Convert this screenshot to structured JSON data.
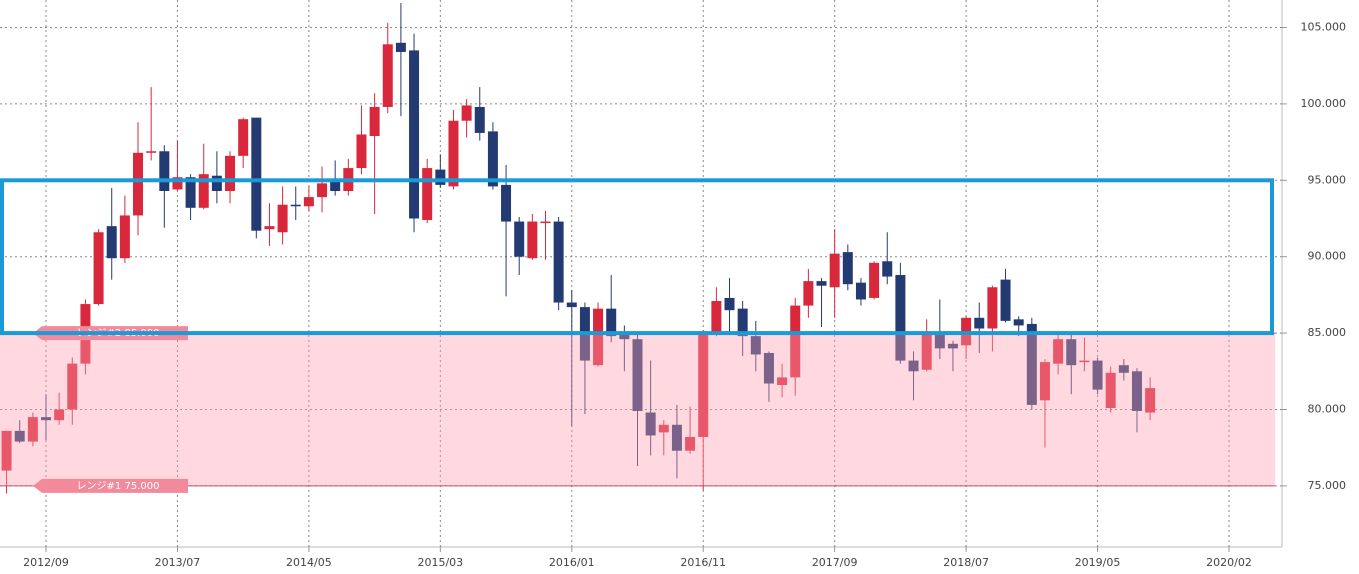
{
  "chart_data": {
    "type": "candlestick",
    "categories": [
      null,
      null,
      null,
      "2012/09",
      null,
      null,
      null,
      null,
      null,
      null,
      null,
      null,
      null,
      "2013/07",
      null,
      null,
      null,
      null,
      null,
      null,
      null,
      null,
      null,
      "2014/05",
      null,
      null,
      null,
      null,
      null,
      null,
      null,
      null,
      null,
      "2015/03",
      null,
      null,
      null,
      null,
      null,
      null,
      null,
      null,
      null,
      "2016/01",
      null,
      null,
      null,
      null,
      null,
      null,
      null,
      null,
      null,
      "2016/11",
      null,
      null,
      null,
      null,
      null,
      null,
      null,
      null,
      null,
      "2017/09",
      null,
      null,
      null,
      null,
      null,
      null,
      null,
      null,
      null,
      "2018/07",
      null,
      null,
      null,
      null,
      null,
      null,
      null,
      null,
      null,
      "2019/05",
      null,
      null,
      null,
      null,
      null,
      null,
      null,
      null,
      null,
      "2020/02",
      null,
      null,
      null
    ],
    "open": [
      76.0,
      78.6,
      77.9,
      79.5,
      79.3,
      80.0,
      83.0,
      86.9,
      92.0,
      89.9,
      92.7,
      96.8,
      96.9,
      94.4,
      95.2,
      93.2,
      95.3,
      94.3,
      96.6,
      99.1,
      91.8,
      91.6,
      93.4,
      93.3,
      93.9,
      95.0,
      94.3,
      95.8,
      97.9,
      99.8,
      104.0,
      103.5,
      92.4,
      95.7,
      94.6,
      98.9,
      99.8,
      98.2,
      94.7,
      92.3,
      89.9,
      92.2,
      92.3,
      87.0,
      86.7,
      82.9,
      86.6,
      85.0,
      84.6,
      79.8,
      78.5,
      79.0,
      77.3,
      78.2,
      85.1,
      87.3,
      86.6,
      84.8,
      83.7,
      81.6,
      82.1,
      86.8,
      88.4,
      88.0,
      90.3,
      88.3,
      87.3,
      89.7,
      88.8,
      83.2,
      82.6,
      85.1,
      84.3,
      84.2,
      86.0,
      85.3,
      88.5,
      85.9,
      85.6,
      80.6,
      83.0,
      84.6,
      83.1,
      83.2,
      80.1,
      82.9,
      82.5,
      79.8,
      null,
      null,
      null,
      null,
      null,
      null,
      null,
      null,
      null
    ],
    "high": [
      78.6,
      79.3,
      79.8,
      81.0,
      81.1,
      83.4,
      87.2,
      91.8,
      94.5,
      94.0,
      98.8,
      101.1,
      97.3,
      97.6,
      95.4,
      97.4,
      96.9,
      96.9,
      99.1,
      99.1,
      93.5,
      94.6,
      94.6,
      94.6,
      95.9,
      96.3,
      96.4,
      99.9,
      100.7,
      105.3,
      106.6,
      104.6,
      96.4,
      96.7,
      99.6,
      100.3,
      101.1,
      98.8,
      96.0,
      92.6,
      92.8,
      93.0,
      92.6,
      87.8,
      87.0,
      87.0,
      88.8,
      85.5,
      85.0,
      83.2,
      79.3,
      80.3,
      80.2,
      85.2,
      88.0,
      88.6,
      87.1,
      85.8,
      83.8,
      83.0,
      87.3,
      89.2,
      88.6,
      91.8,
      90.8,
      88.6,
      89.7,
      91.6,
      89.6,
      83.8,
      85.9,
      87.2,
      84.5,
      86.1,
      87.0,
      88.1,
      89.2,
      86.1,
      86.0,
      83.3,
      84.9,
      84.9,
      84.7,
      83.4,
      82.8,
      83.3,
      82.7,
      82.1,
      null,
      null,
      null,
      null,
      null,
      null,
      null,
      null,
      null
    ],
    "low": [
      74.5,
      77.8,
      77.6,
      78.0,
      79.0,
      79.0,
      82.3,
      86.8,
      88.5,
      89.6,
      91.4,
      96.3,
      91.9,
      94.3,
      92.4,
      93.1,
      93.5,
      93.5,
      95.8,
      91.2,
      90.7,
      90.8,
      92.4,
      93.0,
      92.9,
      94.0,
      94.0,
      95.4,
      92.8,
      99.4,
      99.2,
      91.6,
      92.2,
      94.5,
      94.4,
      97.8,
      97.6,
      94.4,
      87.4,
      88.8,
      89.8,
      89.8,
      86.5,
      78.9,
      79.7,
      82.8,
      84.4,
      82.5,
      76.3,
      77.0,
      77.0,
      75.5,
      77.1,
      74.7,
      84.8,
      84.9,
      83.5,
      82.5,
      80.5,
      80.8,
      80.9,
      86.0,
      85.4,
      86.0,
      87.8,
      86.8,
      87.2,
      88.2,
      83.0,
      80.6,
      82.5,
      83.3,
      82.5,
      83.3,
      83.7,
      83.8,
      85.7,
      84.8,
      80.0,
      77.5,
      82.3,
      81.0,
      82.5,
      81.0,
      79.8,
      81.9,
      78.5,
      79.3,
      null,
      null,
      null,
      null,
      null,
      null,
      null,
      null,
      null
    ],
    "close": [
      78.6,
      77.9,
      79.5,
      79.3,
      80.0,
      83.0,
      86.9,
      91.6,
      89.9,
      92.7,
      96.8,
      96.9,
      94.3,
      95.2,
      93.2,
      95.4,
      94.3,
      96.6,
      99.0,
      91.7,
      92.0,
      93.4,
      93.3,
      93.9,
      94.8,
      94.3,
      95.8,
      98.0,
      99.8,
      103.9,
      103.4,
      92.5,
      95.8,
      94.7,
      98.9,
      99.9,
      98.1,
      94.6,
      92.3,
      90.0,
      92.3,
      92.3,
      87.0,
      86.7,
      83.2,
      86.6,
      84.8,
      84.6,
      79.9,
      78.3,
      79.0,
      77.3,
      78.2,
      85.0,
      87.1,
      86.5,
      84.8,
      83.6,
      81.7,
      82.1,
      86.8,
      88.4,
      88.1,
      90.2,
      88.2,
      87.2,
      89.6,
      88.7,
      83.2,
      82.5,
      85.1,
      84.0,
      84.0,
      86.0,
      85.3,
      88.0,
      85.8,
      85.5,
      80.3,
      83.1,
      84.6,
      82.9,
      83.2,
      81.3,
      82.4,
      82.4,
      79.9,
      81.4,
      null,
      null,
      null,
      null,
      null,
      null,
      null,
      null,
      null
    ],
    "up_color": "#d9283c",
    "down_color": "#243a73",
    "ylim": [
      71,
      106.8
    ],
    "yticks": [
      {
        "value": 75,
        "label": "75.000"
      },
      {
        "value": 80,
        "label": "80.000"
      },
      {
        "value": 85,
        "label": "85.000"
      },
      {
        "value": 90,
        "label": "90.000"
      },
      {
        "value": 95,
        "label": "95.000"
      },
      {
        "value": 100,
        "label": "100.000"
      },
      {
        "value": 105,
        "label": "105.000"
      }
    ],
    "grid": true,
    "range_lines": [
      {
        "label": "レンジ#2 85.000",
        "value": 85
      },
      {
        "label": "レンジ#1 75.000",
        "value": 75
      }
    ],
    "range_color": "#ff9fb0",
    "highlight_box": {
      "ylim": [
        85,
        95
      ],
      "color": "#1a9ad6"
    }
  }
}
